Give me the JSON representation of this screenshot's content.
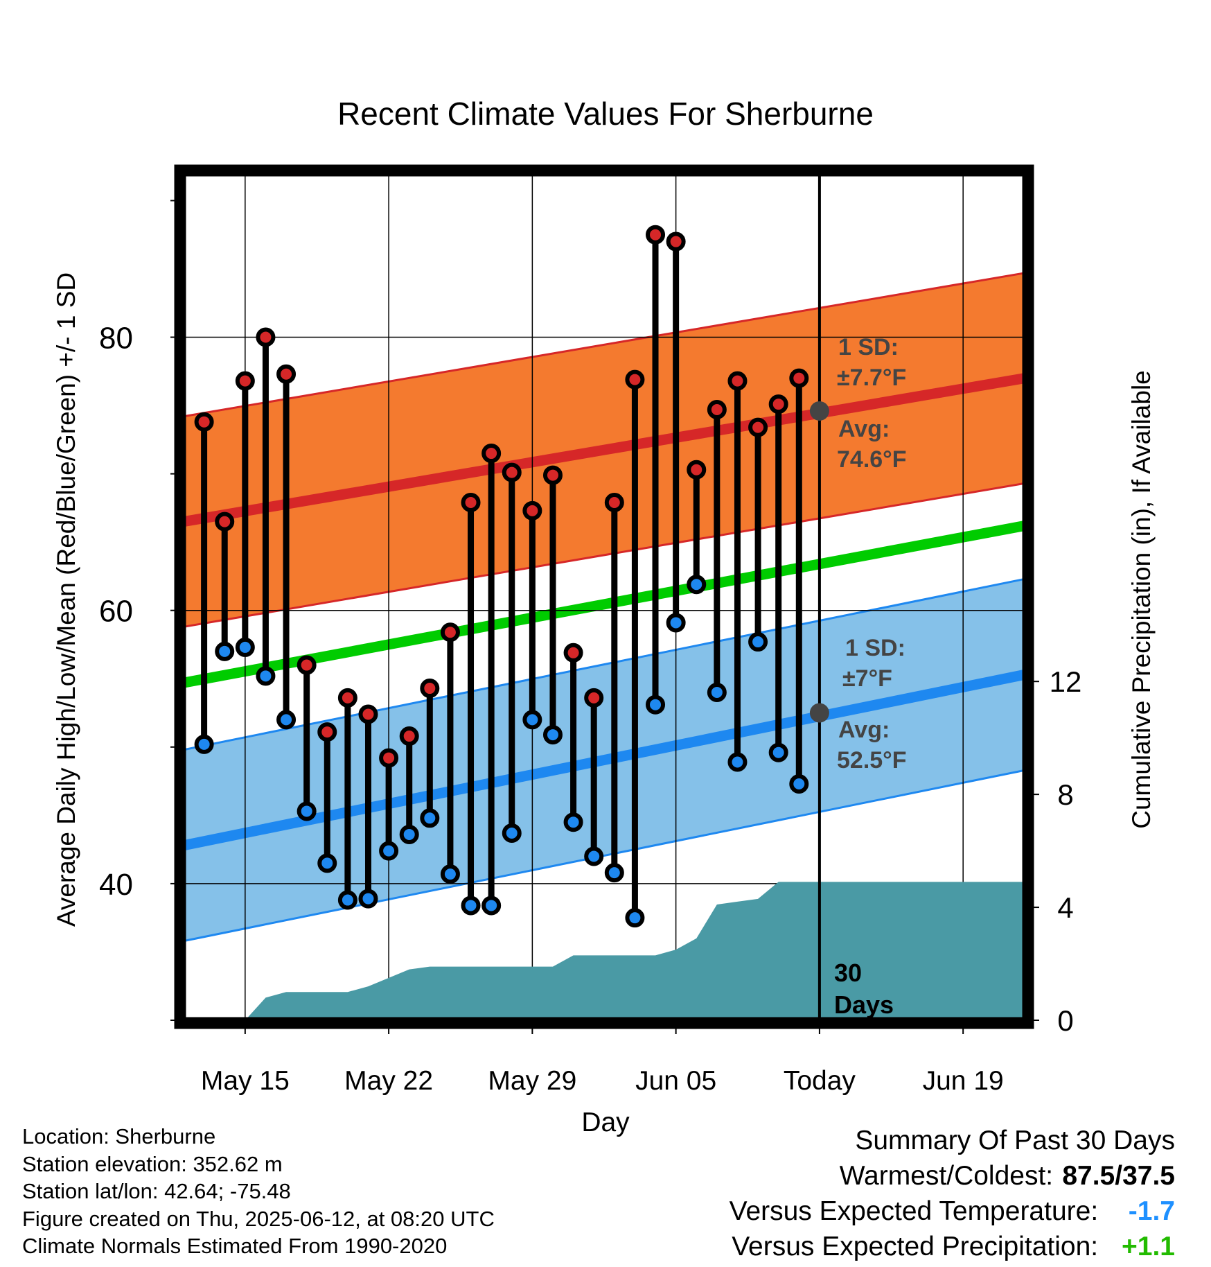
{
  "chart_data": {
    "type": "line",
    "title": "Recent Climate Values For Sherburne",
    "xlabel": "Day",
    "ylabel_left": "Average Daily High/Low/Mean (Red/Blue/Green) +/- 1 SD",
    "ylabel_right": "Cumulative Precipitation (in), If Available",
    "x_range": [
      "2025-05-12",
      "2025-06-22"
    ],
    "ylim_left": [
      30,
      92
    ],
    "ylim_right": [
      0,
      30
    ],
    "y_ticks_left": [
      40,
      60,
      80
    ],
    "y_ticks_right": [
      0,
      4,
      8,
      12
    ],
    "x_ticks": [
      {
        "date": "2025-05-15",
        "label": "May 15"
      },
      {
        "date": "2025-05-22",
        "label": "May 22"
      },
      {
        "date": "2025-05-29",
        "label": "May 29"
      },
      {
        "date": "2025-06-05",
        "label": "Jun 05"
      },
      {
        "date": "2025-06-12",
        "label": "Today"
      },
      {
        "date": "2025-06-19",
        "label": "Jun 19"
      }
    ],
    "today": "2025-06-12",
    "today_label": "30 Days",
    "grid": true,
    "normal_high": {
      "start": 66.5,
      "end": 77.0,
      "sd_label": "1 SD:",
      "sd_value": "±7.7°F",
      "avg_label": "Avg:",
      "avg_value": "74.6°F",
      "today_value": 74.6
    },
    "normal_low": {
      "start": 42.8,
      "end": 55.3,
      "sd_label": "1 SD:",
      "sd_value": "±7°F",
      "avg_label": "Avg:",
      "avg_value": "52.5°F",
      "today_value": 52.5
    },
    "normal_mean": {
      "start": 54.7,
      "end": 66.2
    },
    "daily": [
      {
        "date": "2025-05-13",
        "high": 73.8,
        "low": 50.2
      },
      {
        "date": "2025-05-14",
        "high": 66.5,
        "low": 57.0
      },
      {
        "date": "2025-05-15",
        "high": 76.8,
        "low": 57.3
      },
      {
        "date": "2025-05-16",
        "high": 80.0,
        "low": 55.2
      },
      {
        "date": "2025-05-17",
        "high": 77.3,
        "low": 52.0
      },
      {
        "date": "2025-05-18",
        "high": 56.0,
        "low": 45.3
      },
      {
        "date": "2025-05-19",
        "high": 51.1,
        "low": 41.5
      },
      {
        "date": "2025-05-20",
        "high": 53.6,
        "low": 38.8
      },
      {
        "date": "2025-05-21",
        "high": 52.4,
        "low": 38.9
      },
      {
        "date": "2025-05-22",
        "high": 49.2,
        "low": 42.4
      },
      {
        "date": "2025-05-23",
        "high": 50.8,
        "low": 43.6
      },
      {
        "date": "2025-05-24",
        "high": 54.3,
        "low": 44.8
      },
      {
        "date": "2025-05-25",
        "high": 58.4,
        "low": 40.7
      },
      {
        "date": "2025-05-26",
        "high": 67.9,
        "low": 38.4
      },
      {
        "date": "2025-05-27",
        "high": 71.5,
        "low": 38.4
      },
      {
        "date": "2025-05-28",
        "high": 70.1,
        "low": 43.7
      },
      {
        "date": "2025-05-29",
        "high": 67.3,
        "low": 52.0
      },
      {
        "date": "2025-05-30",
        "high": 69.9,
        "low": 50.9
      },
      {
        "date": "2025-05-31",
        "high": 56.9,
        "low": 44.5
      },
      {
        "date": "2025-06-01",
        "high": 53.6,
        "low": 42.0
      },
      {
        "date": "2025-06-02",
        "high": 67.9,
        "low": 40.8
      },
      {
        "date": "2025-06-03",
        "high": 76.9,
        "low": 37.5
      },
      {
        "date": "2025-06-04",
        "high": 87.5,
        "low": 53.1
      },
      {
        "date": "2025-06-05",
        "high": 87.0,
        "low": 59.1
      },
      {
        "date": "2025-06-06",
        "high": 70.3,
        "low": 61.9
      },
      {
        "date": "2025-06-07",
        "high": 74.7,
        "low": 54.0
      },
      {
        "date": "2025-06-08",
        "high": 76.8,
        "low": 48.9
      },
      {
        "date": "2025-06-09",
        "high": 73.4,
        "low": 57.7
      },
      {
        "date": "2025-06-10",
        "high": 75.1,
        "low": 49.6
      },
      {
        "date": "2025-06-11",
        "high": 77.0,
        "low": 47.3
      }
    ],
    "precip_cumulative": [
      {
        "date": "2025-05-12",
        "value": null
      },
      {
        "date": "2025-05-15",
        "value": 0.0
      },
      {
        "date": "2025-05-16",
        "value": 0.8
      },
      {
        "date": "2025-05-17",
        "value": 1.0
      },
      {
        "date": "2025-05-18",
        "value": 1.0
      },
      {
        "date": "2025-05-19",
        "value": 1.0
      },
      {
        "date": "2025-05-20",
        "value": 1.0
      },
      {
        "date": "2025-05-21",
        "value": 1.2
      },
      {
        "date": "2025-05-22",
        "value": 1.5
      },
      {
        "date": "2025-05-23",
        "value": 1.8
      },
      {
        "date": "2025-05-24",
        "value": 1.9
      },
      {
        "date": "2025-05-25",
        "value": 1.9
      },
      {
        "date": "2025-05-28",
        "value": 1.9
      },
      {
        "date": "2025-05-30",
        "value": 1.9
      },
      {
        "date": "2025-05-31",
        "value": 2.3
      },
      {
        "date": "2025-06-01",
        "value": 2.3
      },
      {
        "date": "2025-06-04",
        "value": 2.3
      },
      {
        "date": "2025-06-05",
        "value": 2.5
      },
      {
        "date": "2025-06-06",
        "value": 2.9
      },
      {
        "date": "2025-06-07",
        "value": 4.1
      },
      {
        "date": "2025-06-08",
        "value": 4.2
      },
      {
        "date": "2025-06-09",
        "value": 4.3
      },
      {
        "date": "2025-06-10",
        "value": 4.9
      },
      {
        "date": "2025-06-22",
        "value": 4.9
      }
    ]
  },
  "footer": {
    "location": "Location: Sherburne",
    "elevation": "Station elevation: 352.62 m",
    "latlon": "Station lat/lon: 42.64; -75.48",
    "created": "Figure created on Thu, 2025-06-12, at 08:20 UTC",
    "normals": "Climate Normals Estimated From 1990-2020"
  },
  "summary": {
    "title": "Summary Of Past 30 Days",
    "warmest_label": "Warmest/Coldest:",
    "warmest_value": "87.5/37.5",
    "temp_label": "Versus Expected Temperature:",
    "temp_value": "-1.7",
    "precip_label": "Versus Expected Precipitation:",
    "precip_value": "+1.1",
    "colors": {
      "temp": "#1e90ff",
      "precip": "#22bb00"
    }
  },
  "colors": {
    "high_band": "#f47a2f",
    "high_line": "#d62728",
    "low_band": "#85c1e9",
    "low_line": "#1e88f0",
    "mean_line": "#00cc00",
    "precip": "#4a9aa5",
    "high_marker": "#d62728",
    "low_marker": "#1e88f0",
    "avg_marker": "#444444",
    "annotation": "#444444"
  }
}
